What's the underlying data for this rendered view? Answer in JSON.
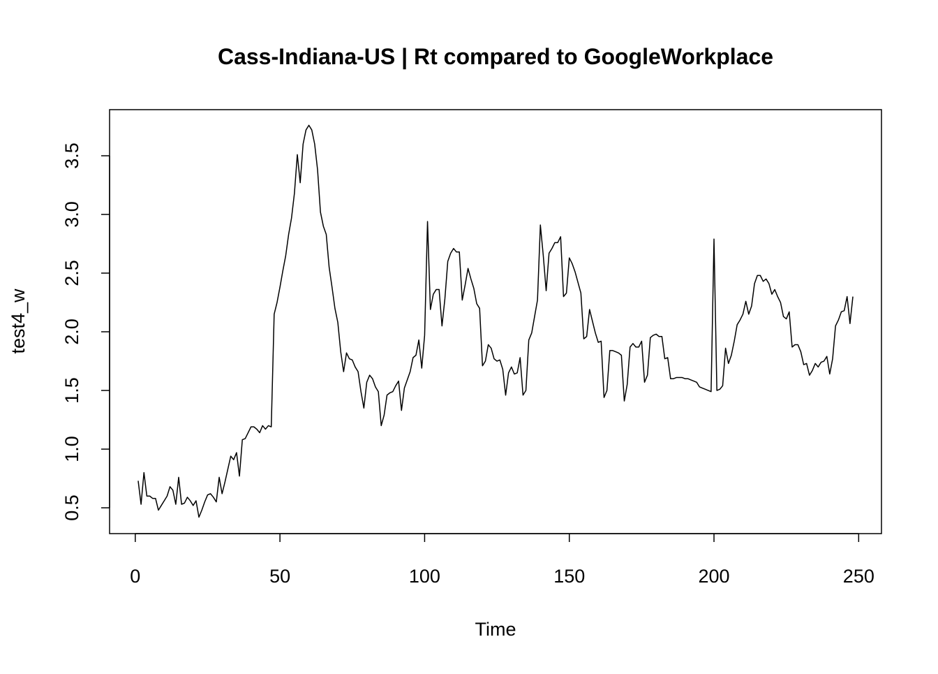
{
  "chart_data": {
    "type": "line",
    "title": "Cass-Indiana-US | Rt compared to GoogleWorkplace",
    "x_label": "Time",
    "y_label": "test4_w",
    "x": [
      1,
      2,
      3,
      4,
      5,
      6,
      7,
      8,
      9,
      10,
      11,
      12,
      13,
      14,
      15,
      16,
      17,
      18,
      19,
      20,
      21,
      22,
      23,
      24,
      25,
      26,
      27,
      28,
      29,
      30,
      31,
      32,
      33,
      34,
      35,
      36,
      37,
      38,
      39,
      40,
      41,
      42,
      43,
      44,
      45,
      46,
      47,
      48,
      49,
      50,
      51,
      52,
      53,
      54,
      55,
      56,
      57,
      58,
      59,
      60,
      61,
      62,
      63,
      64,
      65,
      66,
      67,
      68,
      69,
      70,
      71,
      72,
      73,
      74,
      75,
      76,
      77,
      78,
      79,
      80,
      81,
      82,
      83,
      84,
      85,
      86,
      87,
      88,
      89,
      90,
      91,
      92,
      93,
      94,
      95,
      96,
      97,
      98,
      99,
      100,
      101,
      102,
      103,
      104,
      105,
      106,
      107,
      108,
      109,
      110,
      111,
      112,
      113,
      114,
      115,
      116,
      117,
      118,
      119,
      120,
      121,
      122,
      123,
      124,
      125,
      126,
      127,
      128,
      129,
      130,
      131,
      132,
      133,
      134,
      135,
      136,
      137,
      138,
      139,
      140,
      141,
      142,
      143,
      144,
      145,
      146,
      147,
      148,
      149,
      150,
      151,
      152,
      153,
      154,
      155,
      156,
      157,
      158,
      159,
      160,
      161,
      162,
      163,
      164,
      165,
      166,
      167,
      168,
      169,
      170,
      171,
      172,
      173,
      174,
      175,
      176,
      177,
      178,
      179,
      180,
      181,
      182,
      183,
      184,
      185,
      186,
      187,
      188,
      189,
      190,
      191,
      192,
      193,
      194,
      195,
      196,
      197,
      198,
      199,
      200,
      201,
      202,
      203,
      204,
      205,
      206,
      207,
      208,
      209,
      210,
      211,
      212,
      213,
      214,
      215,
      216,
      217,
      218,
      219,
      220,
      221,
      222,
      223,
      224,
      225,
      226,
      227,
      228,
      229,
      230,
      231,
      232,
      233,
      234,
      235,
      236,
      237,
      238,
      239,
      240,
      241,
      242,
      243,
      244,
      245,
      246,
      247,
      248
    ],
    "values": [
      0.73,
      0.53,
      0.8,
      0.6,
      0.6,
      0.58,
      0.58,
      0.48,
      0.52,
      0.56,
      0.6,
      0.68,
      0.65,
      0.53,
      0.76,
      0.53,
      0.54,
      0.59,
      0.56,
      0.52,
      0.56,
      0.42,
      0.48,
      0.55,
      0.61,
      0.62,
      0.59,
      0.55,
      0.76,
      0.62,
      0.72,
      0.83,
      0.94,
      0.91,
      0.97,
      0.77,
      1.08,
      1.09,
      1.14,
      1.19,
      1.19,
      1.17,
      1.14,
      1.2,
      1.17,
      1.2,
      1.19,
      2.15,
      2.25,
      2.38,
      2.52,
      2.65,
      2.83,
      2.97,
      3.18,
      3.51,
      3.27,
      3.6,
      3.72,
      3.76,
      3.72,
      3.6,
      3.38,
      3.02,
      2.9,
      2.83,
      2.55,
      2.38,
      2.2,
      2.08,
      1.83,
      1.66,
      1.82,
      1.77,
      1.76,
      1.7,
      1.66,
      1.49,
      1.35,
      1.57,
      1.63,
      1.6,
      1.53,
      1.49,
      1.2,
      1.29,
      1.46,
      1.48,
      1.49,
      1.54,
      1.58,
      1.33,
      1.52,
      1.59,
      1.66,
      1.78,
      1.8,
      1.93,
      1.69,
      1.97,
      2.94,
      2.19,
      2.32,
      2.36,
      2.36,
      2.05,
      2.28,
      2.6,
      2.67,
      2.71,
      2.68,
      2.68,
      2.27,
      2.4,
      2.54,
      2.45,
      2.37,
      2.24,
      2.2,
      1.71,
      1.75,
      1.89,
      1.86,
      1.77,
      1.75,
      1.76,
      1.68,
      1.46,
      1.65,
      1.7,
      1.64,
      1.65,
      1.78,
      1.46,
      1.5,
      1.93,
      1.99,
      2.13,
      2.27,
      2.91,
      2.65,
      2.35,
      2.67,
      2.71,
      2.76,
      2.76,
      2.81,
      2.3,
      2.33,
      2.63,
      2.58,
      2.51,
      2.42,
      2.33,
      1.94,
      1.96,
      2.19,
      2.09,
      1.99,
      1.91,
      1.92,
      1.44,
      1.5,
      1.84,
      1.84,
      1.83,
      1.82,
      1.8,
      1.41,
      1.55,
      1.87,
      1.9,
      1.87,
      1.87,
      1.92,
      1.57,
      1.63,
      1.95,
      1.97,
      1.98,
      1.96,
      1.96,
      1.77,
      1.78,
      1.6,
      1.6,
      1.61,
      1.61,
      1.61,
      1.6,
      1.6,
      1.59,
      1.58,
      1.57,
      1.53,
      1.52,
      1.51,
      1.5,
      1.49,
      2.79,
      1.5,
      1.51,
      1.54,
      1.86,
      1.73,
      1.8,
      1.92,
      2.06,
      2.1,
      2.15,
      2.26,
      2.15,
      2.22,
      2.41,
      2.48,
      2.48,
      2.43,
      2.45,
      2.41,
      2.32,
      2.36,
      2.3,
      2.25,
      2.13,
      2.11,
      2.17,
      1.87,
      1.89,
      1.89,
      1.83,
      1.72,
      1.73,
      1.63,
      1.67,
      1.73,
      1.7,
      1.74,
      1.75,
      1.79,
      1.64,
      1.77,
      2.05,
      2.1,
      2.17,
      2.18,
      2.3,
      2.07,
      2.3
    ],
    "color": "#000000",
    "xlim": [
      -8.88,
      257.88
    ],
    "ylim": [
      0.28,
      3.893
    ],
    "xticks": [
      0,
      50,
      100,
      150,
      200,
      250
    ],
    "yticks": [
      0.5,
      {
        "value": 1,
        "label": "1.0"
      },
      1.5,
      {
        "value": 2,
        "label": "2.0"
      },
      2.5,
      {
        "value": 3,
        "label": "3.0"
      },
      3.5
    ]
  }
}
